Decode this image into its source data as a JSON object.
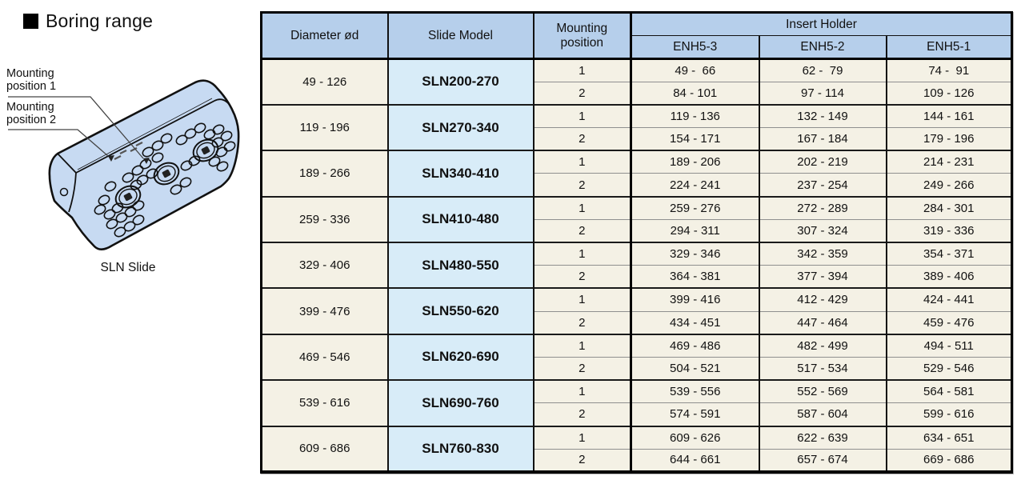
{
  "page_title": "Boring range",
  "illustration": {
    "label_position1": "Mounting\nposition 1",
    "label_position2": "Mounting\nposition 2",
    "caption": "SLN Slide"
  },
  "table": {
    "headers": {
      "diameter": "Diameter ød",
      "slide_model": "Slide Model",
      "mounting_position": "Mounting position",
      "insert_holder": "Insert Holder",
      "holder_columns": [
        "ENH5-3",
        "ENH5-2",
        "ENH5-1"
      ]
    },
    "rows": [
      {
        "diameter": "49 - 126",
        "slide_model": "SLN200-270",
        "positions": [
          {
            "label": "1",
            "holders": [
              "49 -  66",
              "62 -  79",
              "74 -  91"
            ]
          },
          {
            "label": "2",
            "holders": [
              "84 - 101",
              "97 - 114",
              "109 - 126"
            ]
          }
        ]
      },
      {
        "diameter": "119 - 196",
        "slide_model": "SLN270-340",
        "positions": [
          {
            "label": "1",
            "holders": [
              "119 - 136",
              "132 - 149",
              "144 - 161"
            ]
          },
          {
            "label": "2",
            "holders": [
              "154 - 171",
              "167 - 184",
              "179 - 196"
            ]
          }
        ]
      },
      {
        "diameter": "189 - 266",
        "slide_model": "SLN340-410",
        "positions": [
          {
            "label": "1",
            "holders": [
              "189 - 206",
              "202 - 219",
              "214 - 231"
            ]
          },
          {
            "label": "2",
            "holders": [
              "224 - 241",
              "237 - 254",
              "249 - 266"
            ]
          }
        ]
      },
      {
        "diameter": "259 - 336",
        "slide_model": "SLN410-480",
        "positions": [
          {
            "label": "1",
            "holders": [
              "259 - 276",
              "272 - 289",
              "284 - 301"
            ]
          },
          {
            "label": "2",
            "holders": [
              "294 - 311",
              "307 - 324",
              "319 - 336"
            ]
          }
        ]
      },
      {
        "diameter": "329 - 406",
        "slide_model": "SLN480-550",
        "positions": [
          {
            "label": "1",
            "holders": [
              "329 - 346",
              "342 - 359",
              "354 - 371"
            ]
          },
          {
            "label": "2",
            "holders": [
              "364 - 381",
              "377 - 394",
              "389 - 406"
            ]
          }
        ]
      },
      {
        "diameter": "399 - 476",
        "slide_model": "SLN550-620",
        "positions": [
          {
            "label": "1",
            "holders": [
              "399 - 416",
              "412 - 429",
              "424 - 441"
            ]
          },
          {
            "label": "2",
            "holders": [
              "434 - 451",
              "447 - 464",
              "459 - 476"
            ]
          }
        ]
      },
      {
        "diameter": "469 - 546",
        "slide_model": "SLN620-690",
        "positions": [
          {
            "label": "1",
            "holders": [
              "469 - 486",
              "482 - 499",
              "494 - 511"
            ]
          },
          {
            "label": "2",
            "holders": [
              "504 - 521",
              "517 - 534",
              "529 - 546"
            ]
          }
        ]
      },
      {
        "diameter": "539 - 616",
        "slide_model": "SLN690-760",
        "positions": [
          {
            "label": "1",
            "holders": [
              "539 - 556",
              "552 - 569",
              "564 - 581"
            ]
          },
          {
            "label": "2",
            "holders": [
              "574 - 591",
              "587 - 604",
              "599 - 616"
            ]
          }
        ]
      },
      {
        "diameter": "609 - 686",
        "slide_model": "SLN760-830",
        "positions": [
          {
            "label": "1",
            "holders": [
              "609 - 626",
              "622 - 639",
              "634 - 651"
            ]
          },
          {
            "label": "2",
            "holders": [
              "644 - 661",
              "657 - 674",
              "669 - 686"
            ]
          }
        ]
      }
    ]
  },
  "colors": {
    "header_bg": "#b6cfeb",
    "cell_bg": "#f4f1e5",
    "model_bg": "#d8ecf8",
    "illustration_fill": "#c7daf2"
  }
}
